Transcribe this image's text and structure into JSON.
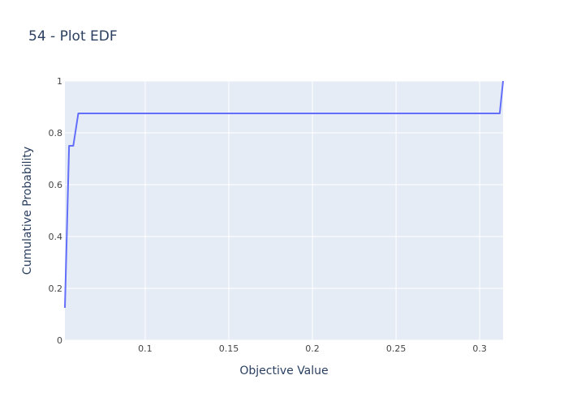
{
  "chart_data": {
    "type": "line",
    "title": "54 - Plot EDF",
    "xlabel": "Objective Value",
    "ylabel": "Cumulative Probability",
    "xlim": [
      0.052,
      0.314
    ],
    "ylim": [
      0,
      1
    ],
    "x_ticks": [
      0.1,
      0.15,
      0.2,
      0.25,
      0.3
    ],
    "x_tick_labels": [
      "0.1",
      "0.15",
      "0.2",
      "0.25",
      "0.3"
    ],
    "y_ticks": [
      0,
      0.2,
      0.4,
      0.6,
      0.8,
      1
    ],
    "y_tick_labels": [
      "0",
      "0.2",
      "0.4",
      "0.6",
      "0.8",
      "1"
    ],
    "grid": true,
    "series": [
      {
        "color": "#636efa",
        "x": [
          0.052,
          0.0545,
          0.057,
          0.06,
          0.312,
          0.314
        ],
        "y": [
          0.125,
          0.75,
          0.75,
          0.875,
          0.875,
          1.0
        ]
      }
    ],
    "colors": {
      "plot_bg": "#e5ecf6",
      "grid": "#ffffff",
      "line": "#636efa",
      "title": "#2a3f5f",
      "tick": "#444444"
    }
  }
}
